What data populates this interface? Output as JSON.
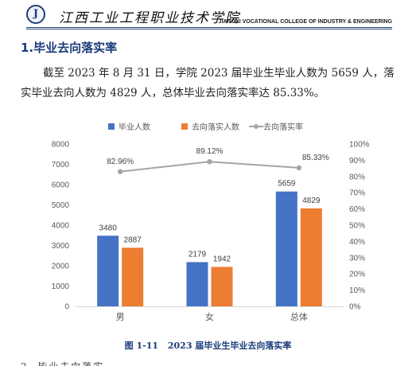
{
  "header": {
    "logo_glyph": "J",
    "school_name_cn": "江西工业工程职业技术学院",
    "school_name_en": "JIANGXI VOCATIONAL COLLEGE OF INDUSTRY & ENGINEERING"
  },
  "section": {
    "title": "1.毕业去向落实率",
    "paragraph": "截至 2023 年 8 月 31 日，学院 2023 届毕业生毕业人数为 5659 人，落实毕业去向人数为 4829 人，总体毕业去向落实率达 85.33%。"
  },
  "caption": {
    "figure_no": "图 1-11",
    "title": "2023 届毕业生毕业去向落实率"
  },
  "colors": {
    "graduates": "#4472C4",
    "placed": "#ED7D31",
    "rate": "#A5A5A5",
    "axis": "#D9D9D9",
    "title_blue": "#1a3b7a"
  },
  "chart_data": {
    "type": "bar",
    "categories": [
      "男",
      "女",
      "总体"
    ],
    "series": [
      {
        "name": "毕业人数",
        "kind": "bar",
        "axis": "left",
        "values": [
          3480,
          2179,
          5659
        ],
        "labels": [
          "3480",
          "2179",
          "5659"
        ]
      },
      {
        "name": "去向落实人数",
        "kind": "bar",
        "axis": "left",
        "values": [
          2887,
          1942,
          4829
        ],
        "labels": [
          "2887",
          "1942",
          "4829"
        ]
      },
      {
        "name": "去向落实率",
        "kind": "line",
        "axis": "right",
        "values": [
          82.96,
          89.12,
          85.33
        ],
        "labels": [
          "82.96%",
          "89.12%",
          "85.33%"
        ]
      }
    ],
    "y_left": {
      "min": 0,
      "max": 8000,
      "step": 1000,
      "ticks": [
        "0",
        "1000",
        "2000",
        "3000",
        "4000",
        "5000",
        "6000",
        "7000",
        "8000"
      ]
    },
    "y_right": {
      "min": 0,
      "max": 100,
      "step": 10,
      "ticks": [
        "0%",
        "10%",
        "20%",
        "30%",
        "40%",
        "50%",
        "60%",
        "70%",
        "80%",
        "90%",
        "100%"
      ]
    },
    "grid": false,
    "legend_position": "top"
  },
  "cut_text": "2. 毕业去向落实"
}
